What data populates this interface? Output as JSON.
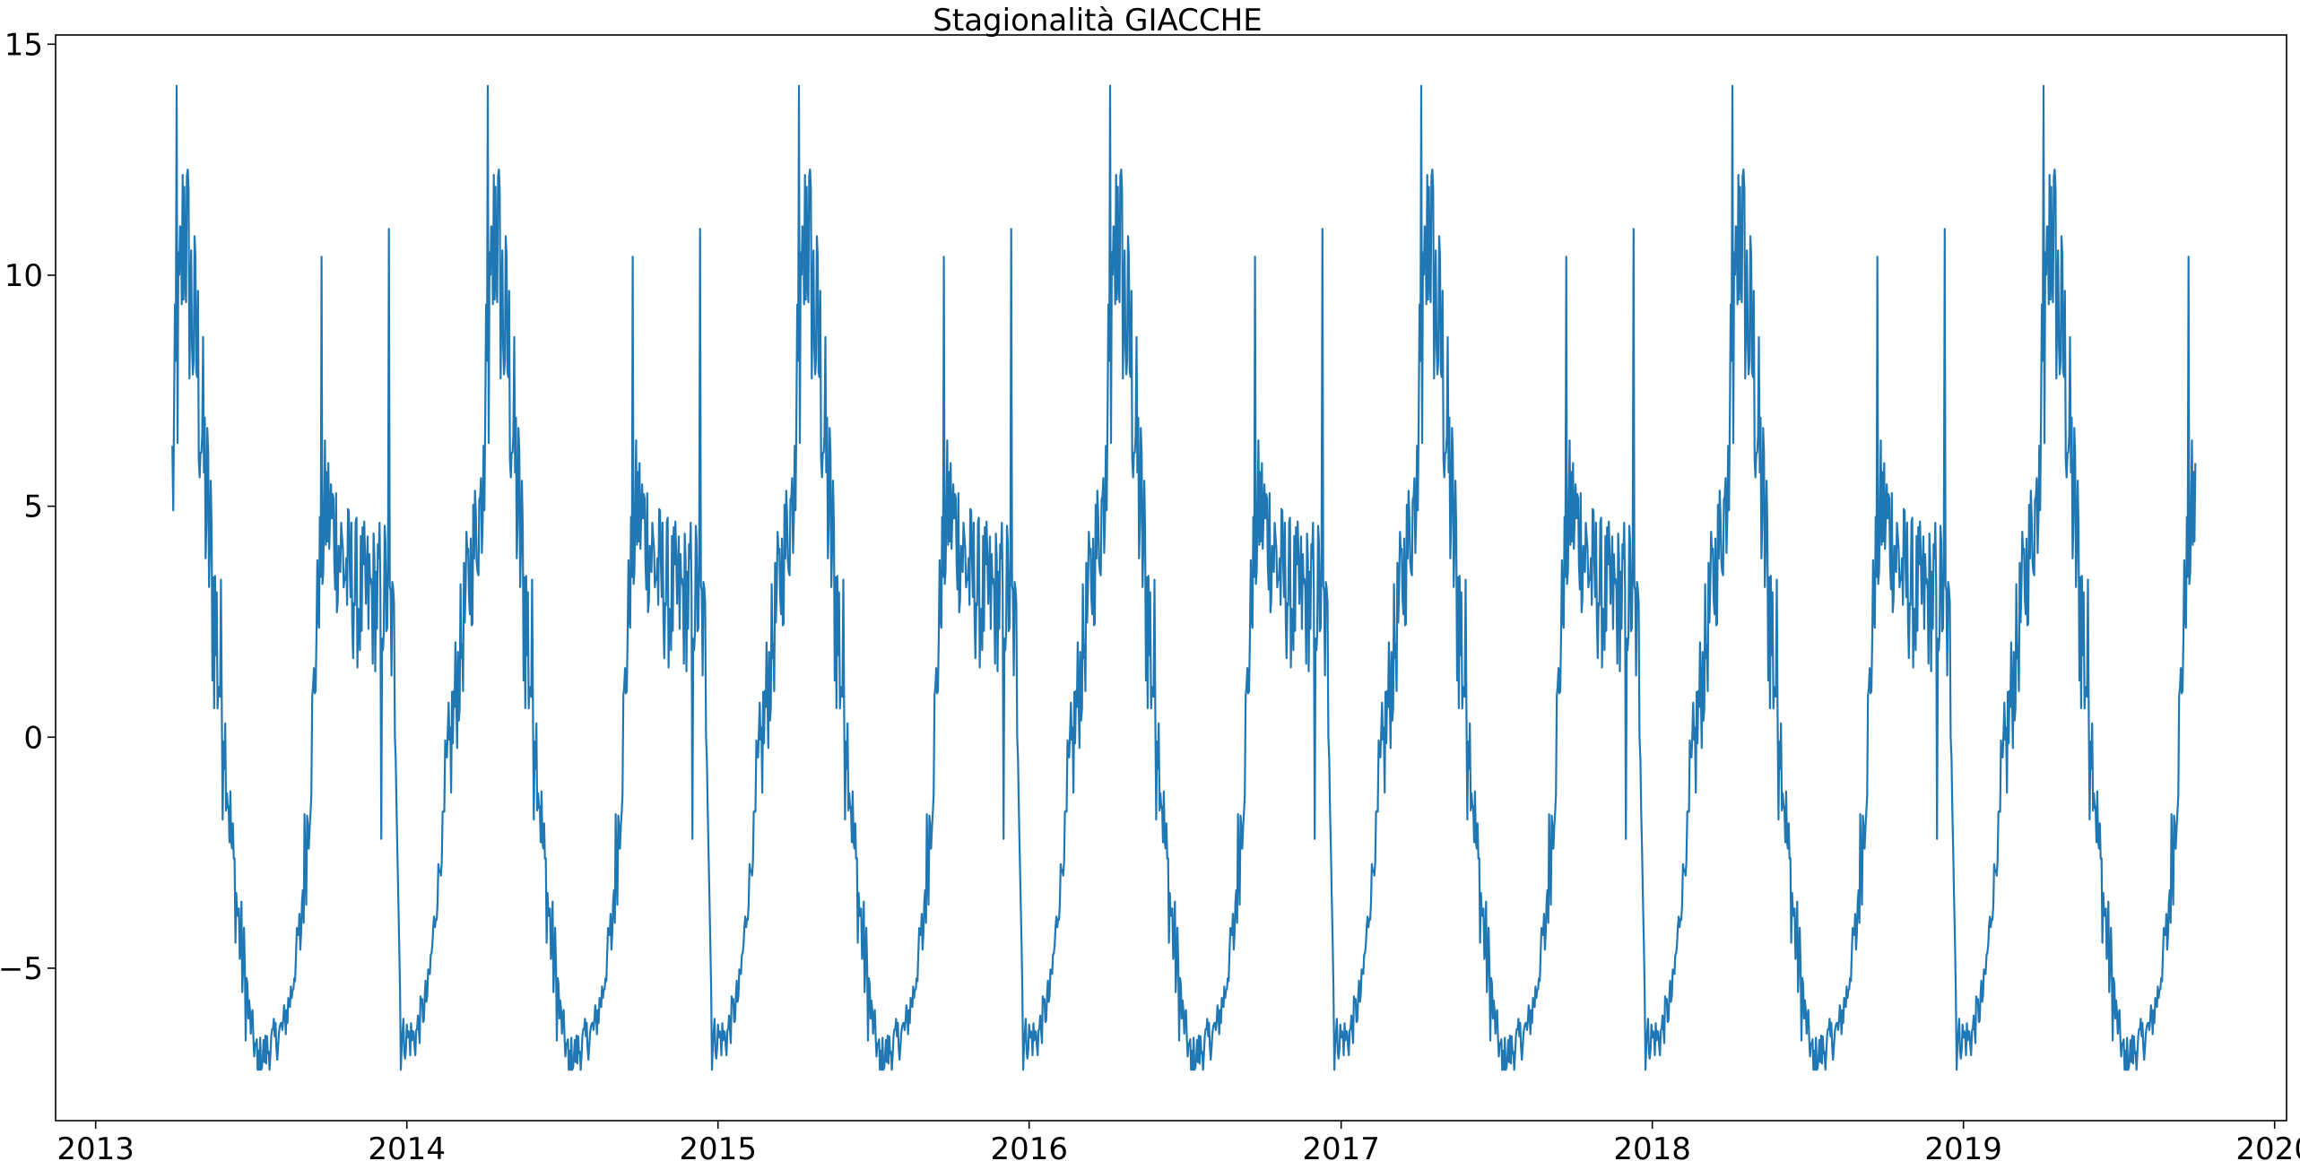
{
  "chart_data": {
    "type": "line",
    "title": "Stagionalità GIACCHE",
    "xlabel": "",
    "ylabel": "",
    "x_range": [
      "2012-11-15",
      "2020-01-15"
    ],
    "ylim": [
      -8.3,
      15.2
    ],
    "grid": false,
    "legend": "none",
    "x_ticks": [
      "2013",
      "2014",
      "2015",
      "2016",
      "2017",
      "2018",
      "2019",
      "2020"
    ],
    "y_ticks": [
      "15",
      "10",
      "5",
      "0",
      "−5"
    ],
    "line_color": "#1f77b4",
    "series": [
      {
        "x_start": "2013-04-01",
        "x_end": "2019-09-30",
        "period_days": 365,
        "annual_pattern_anchors": [
          {
            "day": 0,
            "value": 5.5
          },
          {
            "day": 7,
            "value": 8.5
          },
          {
            "day": 14,
            "value": 11.5
          },
          {
            "day": 21,
            "value": 9.5
          },
          {
            "day": 30,
            "value": 8.0
          },
          {
            "day": 40,
            "value": 5.0
          },
          {
            "day": 50,
            "value": 2.5
          },
          {
            "day": 60,
            "value": 0.5
          },
          {
            "day": 70,
            "value": -2.5
          },
          {
            "day": 80,
            "value": -4.5
          },
          {
            "day": 90,
            "value": -6.0
          },
          {
            "day": 100,
            "value": -7.0
          },
          {
            "day": 115,
            "value": -6.7
          },
          {
            "day": 130,
            "value": -6.3
          },
          {
            "day": 140,
            "value": -5.5
          },
          {
            "day": 150,
            "value": -4.0
          },
          {
            "day": 158,
            "value": -2.0
          },
          {
            "day": 165,
            "value": 0.5
          },
          {
            "day": 172,
            "value": 3.5
          },
          {
            "day": 180,
            "value": 5.0
          },
          {
            "day": 190,
            "value": 4.5
          },
          {
            "day": 205,
            "value": 3.5
          },
          {
            "day": 220,
            "value": 3.0
          },
          {
            "day": 235,
            "value": 3.0
          },
          {
            "day": 250,
            "value": 3.2
          },
          {
            "day": 260,
            "value": 2.0
          },
          {
            "day": 268,
            "value": -6.5
          },
          {
            "day": 285,
            "value": -6.5
          },
          {
            "day": 300,
            "value": -5.5
          },
          {
            "day": 315,
            "value": -2.5
          },
          {
            "day": 330,
            "value": 0.5
          },
          {
            "day": 345,
            "value": 3.0
          },
          {
            "day": 365,
            "value": 5.5
          }
        ],
        "annual_peaks": [
          {
            "day": 5,
            "value": 14.1
          },
          {
            "day": 150,
            "value": -4.6
          },
          {
            "day": 175,
            "value": 10.4
          },
          {
            "day": 254,
            "value": 11.0
          },
          {
            "day": 245,
            "value": -2.2
          },
          {
            "day": 100,
            "value": -7.2
          },
          {
            "day": 268,
            "value": -7.2
          }
        ]
      }
    ]
  }
}
